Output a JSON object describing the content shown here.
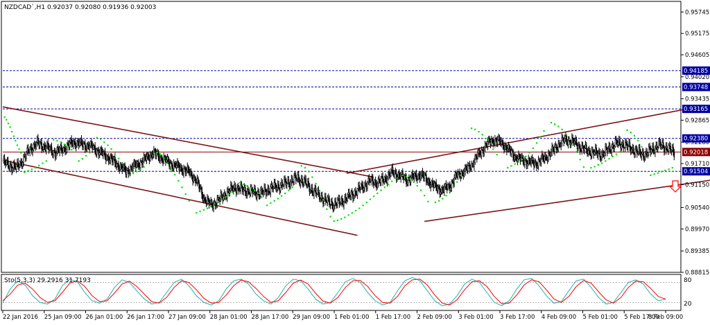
{
  "header": {
    "symbol": "NZDCAD`,H1",
    "ohlc": "0.92037 0.92080 0.91936 0.92003"
  },
  "indicator": {
    "label": "Sto(5,3,3) 29.2916 31.7193",
    "levels": [
      "80",
      "20"
    ]
  },
  "colors": {
    "background": "#ffffff",
    "candle": "#000000",
    "sar": "#00e000",
    "channel": "#7a1414",
    "level_line": "#0000a0",
    "current_price": "#8b0000",
    "stoch_main": "#20b2aa",
    "stoch_signal": "#ff0000",
    "arrow": "#ff0000",
    "axis_text": "#000000"
  },
  "icons": [
    "sell-arrow-icon"
  ],
  "chart_data": {
    "type": "candlestick",
    "title": "NZDCAD`,H1",
    "ylim": [
      0.88815,
      0.9599
    ],
    "y_ticks": [
      "0.95745",
      "0.95175",
      "0.94605",
      "0.94020",
      "0.93435",
      "0.92865",
      "0.92280",
      "0.91710",
      "0.91150",
      "0.90540",
      "0.89970",
      "0.89385",
      "0.88815"
    ],
    "x_ticks": [
      "22 Jan 2016",
      "25 Jan 09:00",
      "26 Jan 01:00",
      "26 Jan 17:00",
      "27 Jan 09:00",
      "28 Jan 01:00",
      "28 Jan 17:00",
      "29 Jan 09:00",
      "1 Feb 01:00",
      "1 Feb 17:00",
      "2 Feb 09:00",
      "3 Feb 01:00",
      "3 Feb 17:00",
      "4 Feb 09:00",
      "5 Feb 01:00",
      "5 Feb 17:00",
      "8 Feb 09:00"
    ],
    "price_labels": [
      {
        "value": "0.94185",
        "kind": "level"
      },
      {
        "value": "0.93748",
        "kind": "level"
      },
      {
        "value": "0.93165",
        "kind": "level"
      },
      {
        "value": "0.92380",
        "kind": "level"
      },
      {
        "value": "0.92018",
        "kind": "current"
      },
      {
        "value": "0.91504",
        "kind": "level"
      }
    ],
    "close_path": [
      [
        0,
        0.9175
      ],
      [
        8,
        0.9165
      ],
      [
        15,
        0.916
      ],
      [
        22,
        0.918
      ],
      [
        30,
        0.921
      ],
      [
        38,
        0.9225
      ],
      [
        48,
        0.9215
      ],
      [
        58,
        0.92
      ],
      [
        68,
        0.9212
      ],
      [
        78,
        0.9228
      ],
      [
        88,
        0.9222
      ],
      [
        98,
        0.9216
      ],
      [
        108,
        0.92
      ],
      [
        118,
        0.9185
      ],
      [
        126,
        0.917
      ],
      [
        136,
        0.915
      ],
      [
        146,
        0.9165
      ],
      [
        156,
        0.918
      ],
      [
        166,
        0.92
      ],
      [
        176,
        0.9185
      ],
      [
        186,
        0.917
      ],
      [
        196,
        0.916
      ],
      [
        206,
        0.9148
      ],
      [
        214,
        0.9125
      ],
      [
        222,
        0.908
      ],
      [
        230,
        0.906
      ],
      [
        238,
        0.9072
      ],
      [
        246,
        0.909
      ],
      [
        256,
        0.9108
      ],
      [
        266,
        0.91
      ],
      [
        276,
        0.9095
      ],
      [
        286,
        0.9092
      ],
      [
        296,
        0.9105
      ],
      [
        306,
        0.9112
      ],
      [
        316,
        0.9122
      ],
      [
        326,
        0.9132
      ],
      [
        334,
        0.912
      ],
      [
        342,
        0.91
      ],
      [
        350,
        0.9085
      ],
      [
        358,
        0.907
      ],
      [
        366,
        0.9062
      ],
      [
        374,
        0.907
      ],
      [
        382,
        0.9082
      ],
      [
        390,
        0.9095
      ],
      [
        398,
        0.911
      ],
      [
        406,
        0.9125
      ],
      [
        414,
        0.912
      ],
      [
        422,
        0.913
      ],
      [
        430,
        0.9148
      ],
      [
        438,
        0.914
      ],
      [
        446,
        0.9128
      ],
      [
        454,
        0.9135
      ],
      [
        462,
        0.9142
      ],
      [
        470,
        0.9125
      ],
      [
        478,
        0.9108
      ],
      [
        486,
        0.91
      ],
      [
        494,
        0.9112
      ],
      [
        502,
        0.914
      ],
      [
        510,
        0.915
      ],
      [
        518,
        0.9168
      ],
      [
        526,
        0.9195
      ],
      [
        534,
        0.922
      ],
      [
        542,
        0.9235
      ],
      [
        550,
        0.9228
      ],
      [
        558,
        0.921
      ],
      [
        566,
        0.919
      ],
      [
        574,
        0.918
      ],
      [
        582,
        0.9175
      ],
      [
        590,
        0.9172
      ],
      [
        598,
        0.9185
      ],
      [
        606,
        0.92
      ],
      [
        614,
        0.9222
      ],
      [
        622,
        0.9235
      ],
      [
        630,
        0.923
      ],
      [
        638,
        0.9215
      ],
      [
        646,
        0.9205
      ],
      [
        654,
        0.92
      ],
      [
        662,
        0.9195
      ],
      [
        670,
        0.921
      ],
      [
        678,
        0.9225
      ],
      [
        686,
        0.9222
      ],
      [
        694,
        0.9212
      ],
      [
        702,
        0.92
      ],
      [
        710,
        0.9195
      ],
      [
        718,
        0.921
      ],
      [
        726,
        0.922
      ],
      [
        734,
        0.9213
      ],
      [
        742,
        0.92
      ]
    ],
    "sar_points": [
      [
        2,
        0.9295
      ],
      [
        4,
        0.9288
      ],
      [
        6,
        0.9278
      ],
      [
        8,
        0.9268
      ],
      [
        10,
        0.9256
      ],
      [
        12,
        0.9244
      ],
      [
        14,
        0.9232
      ],
      [
        16,
        0.922
      ],
      [
        18,
        0.921
      ],
      [
        20,
        0.92
      ],
      [
        24,
        0.9148
      ],
      [
        28,
        0.9152
      ],
      [
        32,
        0.9156
      ],
      [
        36,
        0.916
      ],
      [
        40,
        0.9166
      ],
      [
        44,
        0.9172
      ],
      [
        48,
        0.9178
      ],
      [
        56,
        0.9235
      ],
      [
        60,
        0.9232
      ],
      [
        64,
        0.9228
      ],
      [
        68,
        0.9222
      ],
      [
        72,
        0.9215
      ],
      [
        76,
        0.9208
      ],
      [
        84,
        0.9178
      ],
      [
        88,
        0.9184
      ],
      [
        92,
        0.9192
      ],
      [
        96,
        0.92
      ],
      [
        104,
        0.924
      ],
      [
        108,
        0.9236
      ],
      [
        112,
        0.9228
      ],
      [
        116,
        0.922
      ],
      [
        120,
        0.921
      ],
      [
        124,
        0.9198
      ],
      [
        128,
        0.9185
      ],
      [
        132,
        0.9172
      ],
      [
        140,
        0.914
      ],
      [
        144,
        0.9145
      ],
      [
        148,
        0.915
      ],
      [
        152,
        0.9156
      ],
      [
        156,
        0.9162
      ],
      [
        170,
        0.92
      ],
      [
        174,
        0.9195
      ],
      [
        178,
        0.9185
      ],
      [
        182,
        0.9172
      ],
      [
        186,
        0.9158
      ],
      [
        190,
        0.9142
      ],
      [
        194,
        0.9125
      ],
      [
        198,
        0.9108
      ],
      [
        202,
        0.909
      ],
      [
        206,
        0.9072
      ],
      [
        214,
        0.904
      ],
      [
        218,
        0.9044
      ],
      [
        222,
        0.9048
      ],
      [
        226,
        0.9052
      ],
      [
        230,
        0.9058
      ],
      [
        234,
        0.9064
      ],
      [
        238,
        0.907
      ],
      [
        242,
        0.9076
      ],
      [
        246,
        0.9082
      ],
      [
        250,
        0.9088
      ],
      [
        254,
        0.9094
      ],
      [
        262,
        0.912
      ],
      [
        266,
        0.9116
      ],
      [
        270,
        0.9112
      ],
      [
        274,
        0.9106
      ],
      [
        278,
        0.91
      ],
      [
        282,
        0.9092
      ],
      [
        286,
        0.9082
      ],
      [
        292,
        0.906
      ],
      [
        296,
        0.9066
      ],
      [
        300,
        0.9072
      ],
      [
        304,
        0.9078
      ],
      [
        308,
        0.9085
      ],
      [
        312,
        0.9092
      ],
      [
        316,
        0.91
      ],
      [
        320,
        0.9108
      ],
      [
        330,
        0.9165
      ],
      [
        334,
        0.916
      ],
      [
        338,
        0.915
      ],
      [
        342,
        0.9135
      ],
      [
        346,
        0.9118
      ],
      [
        350,
        0.9098
      ],
      [
        354,
        0.9075
      ],
      [
        358,
        0.905
      ],
      [
        362,
        0.903
      ],
      [
        366,
        0.9018
      ],
      [
        370,
        0.902
      ],
      [
        374,
        0.9024
      ],
      [
        378,
        0.9028
      ],
      [
        382,
        0.9034
      ],
      [
        386,
        0.904
      ],
      [
        390,
        0.9046
      ],
      [
        394,
        0.9052
      ],
      [
        398,
        0.906
      ],
      [
        402,
        0.9068
      ],
      [
        406,
        0.9076
      ],
      [
        410,
        0.9084
      ],
      [
        414,
        0.9092
      ],
      [
        418,
        0.91
      ],
      [
        422,
        0.9108
      ],
      [
        426,
        0.9116
      ],
      [
        430,
        0.9124
      ],
      [
        434,
        0.9132
      ],
      [
        442,
        0.914
      ],
      [
        446,
        0.9136
      ],
      [
        450,
        0.913
      ],
      [
        454,
        0.9122
      ],
      [
        458,
        0.9112
      ],
      [
        462,
        0.91
      ],
      [
        466,
        0.9086
      ],
      [
        470,
        0.907
      ],
      [
        478,
        0.9068
      ],
      [
        482,
        0.9072
      ],
      [
        486,
        0.9078
      ],
      [
        490,
        0.9086
      ],
      [
        494,
        0.9096
      ],
      [
        498,
        0.9108
      ],
      [
        502,
        0.9122
      ],
      [
        506,
        0.914
      ],
      [
        518,
        0.9265
      ],
      [
        522,
        0.9262
      ],
      [
        526,
        0.9256
      ],
      [
        530,
        0.9248
      ],
      [
        534,
        0.9238
      ],
      [
        538,
        0.9225
      ],
      [
        542,
        0.921
      ],
      [
        546,
        0.9195
      ],
      [
        558,
        0.916
      ],
      [
        562,
        0.9165
      ],
      [
        566,
        0.917
      ],
      [
        570,
        0.9176
      ],
      [
        574,
        0.9182
      ],
      [
        578,
        0.919
      ],
      [
        582,
        0.92
      ],
      [
        586,
        0.9212
      ],
      [
        590,
        0.9226
      ],
      [
        594,
        0.9242
      ],
      [
        598,
        0.9258
      ],
      [
        606,
        0.928
      ],
      [
        610,
        0.9276
      ],
      [
        614,
        0.927
      ],
      [
        618,
        0.9262
      ],
      [
        622,
        0.925
      ],
      [
        626,
        0.9236
      ],
      [
        630,
        0.922
      ],
      [
        634,
        0.9202
      ],
      [
        638,
        0.9182
      ],
      [
        642,
        0.9162
      ],
      [
        650,
        0.916
      ],
      [
        654,
        0.9163
      ],
      [
        658,
        0.9168
      ],
      [
        662,
        0.9172
      ],
      [
        666,
        0.9178
      ],
      [
        670,
        0.9184
      ],
      [
        674,
        0.919
      ],
      [
        678,
        0.9196
      ],
      [
        682,
        0.9202
      ],
      [
        690,
        0.926
      ],
      [
        694,
        0.9254
      ],
      [
        698,
        0.9245
      ],
      [
        702,
        0.9232
      ],
      [
        706,
        0.9216
      ],
      [
        716,
        0.914
      ],
      [
        720,
        0.9143
      ],
      [
        724,
        0.9146
      ],
      [
        728,
        0.915
      ],
      [
        732,
        0.9153
      ],
      [
        736,
        0.9156
      ],
      [
        740,
        0.916
      ]
    ],
    "trendlines": [
      {
        "x1": 0,
        "y1": 0.9322,
        "x2": 410,
        "y2": 0.9135
      },
      {
        "x1": 0,
        "y1": 0.918,
        "x2": 392,
        "y2": 0.898
      },
      {
        "x1": 380,
        "y1": 0.9145,
        "x2": 760,
        "y2": 0.9318
      },
      {
        "x1": 466,
        "y1": 0.9017,
        "x2": 982,
        "y2": 0.9196
      }
    ],
    "stochastic": {
      "ylim": [
        0,
        100
      ],
      "levels": [
        20,
        80
      ],
      "main": [
        18,
        60,
        85,
        72,
        40,
        20,
        15,
        30,
        70,
        90,
        82,
        50,
        25,
        18,
        30,
        65,
        88,
        80,
        55,
        30,
        15,
        20,
        50,
        80,
        90,
        70,
        40,
        20,
        12,
        25,
        60,
        85,
        90,
        75,
        45,
        25,
        15,
        35,
        70,
        90,
        85,
        60,
        30,
        15,
        20,
        50,
        82,
        92,
        80,
        50,
        25,
        12,
        20,
        55,
        85,
        95,
        85,
        55,
        25,
        10,
        15,
        40,
        75,
        90,
        80,
        50,
        20,
        10,
        25,
        60,
        88,
        92,
        70,
        40,
        18,
        22,
        55,
        85,
        90,
        65,
        35,
        15,
        20,
        50,
        80,
        88,
        75,
        45,
        25,
        30
      ],
      "signal": [
        25,
        45,
        72,
        78,
        60,
        35,
        20,
        25,
        50,
        78,
        85,
        68,
        40,
        22,
        25,
        48,
        75,
        84,
        68,
        45,
        22,
        18,
        35,
        65,
        85,
        80,
        58,
        32,
        18,
        20,
        42,
        70,
        87,
        82,
        62,
        38,
        20,
        25,
        50,
        78,
        87,
        75,
        48,
        24,
        18,
        35,
        65,
        85,
        86,
        68,
        40,
        20,
        18,
        38,
        70,
        88,
        90,
        72,
        42,
        18,
        12,
        28,
        58,
        82,
        85,
        68,
        38,
        16,
        18,
        42,
        72,
        88,
        82,
        58,
        30,
        20,
        38,
        68,
        86,
        78,
        52,
        28,
        18,
        35,
        65,
        84,
        82,
        62,
        38,
        30
      ]
    }
  }
}
